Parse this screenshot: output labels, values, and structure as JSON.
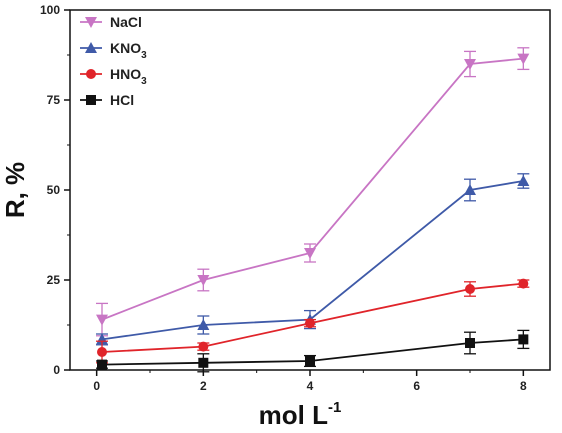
{
  "chart_data": {
    "type": "line",
    "xlabel": "mol L",
    "xlabel_sup": "-1",
    "ylabel": "R, %",
    "xlim": [
      -0.5,
      8.5
    ],
    "ylim": [
      0,
      100
    ],
    "xticks": [
      0,
      2,
      4,
      6,
      8
    ],
    "yticks": [
      0,
      25,
      50,
      75,
      100
    ],
    "grid": false,
    "legend_position": "top-left",
    "series": [
      {
        "name": "NaCl",
        "color": "#c875c4",
        "marker": "triangle-down",
        "x": [
          0.1,
          2,
          4,
          7,
          8
        ],
        "y": [
          14,
          25,
          32.5,
          85,
          86.5
        ],
        "err": [
          4.5,
          3,
          2.5,
          3.5,
          3
        ]
      },
      {
        "name": "KNO3",
        "name_base": "KNO",
        "name_sub": "3",
        "color": "#3f5aa8",
        "marker": "triangle-up",
        "x": [
          0.1,
          2,
          4,
          7,
          8
        ],
        "y": [
          8.5,
          12.5,
          14,
          50,
          52.5
        ],
        "err": [
          1.5,
          2.5,
          2.5,
          3,
          2
        ]
      },
      {
        "name": "HNO3",
        "name_base": "HNO",
        "name_sub": "3",
        "color": "#e0242a",
        "marker": "circle",
        "x": [
          0.1,
          2,
          4,
          7,
          8
        ],
        "y": [
          5,
          6.5,
          13,
          22.5,
          24
        ],
        "err": [
          3,
          1,
          1,
          2,
          1
        ]
      },
      {
        "name": "HCl",
        "color": "#111111",
        "marker": "square",
        "x": [
          0.1,
          2,
          4,
          7,
          8
        ],
        "y": [
          1.5,
          2,
          2.5,
          7.5,
          8.5
        ],
        "err": [
          1,
          2.5,
          1.5,
          3,
          2.5
        ]
      }
    ]
  }
}
